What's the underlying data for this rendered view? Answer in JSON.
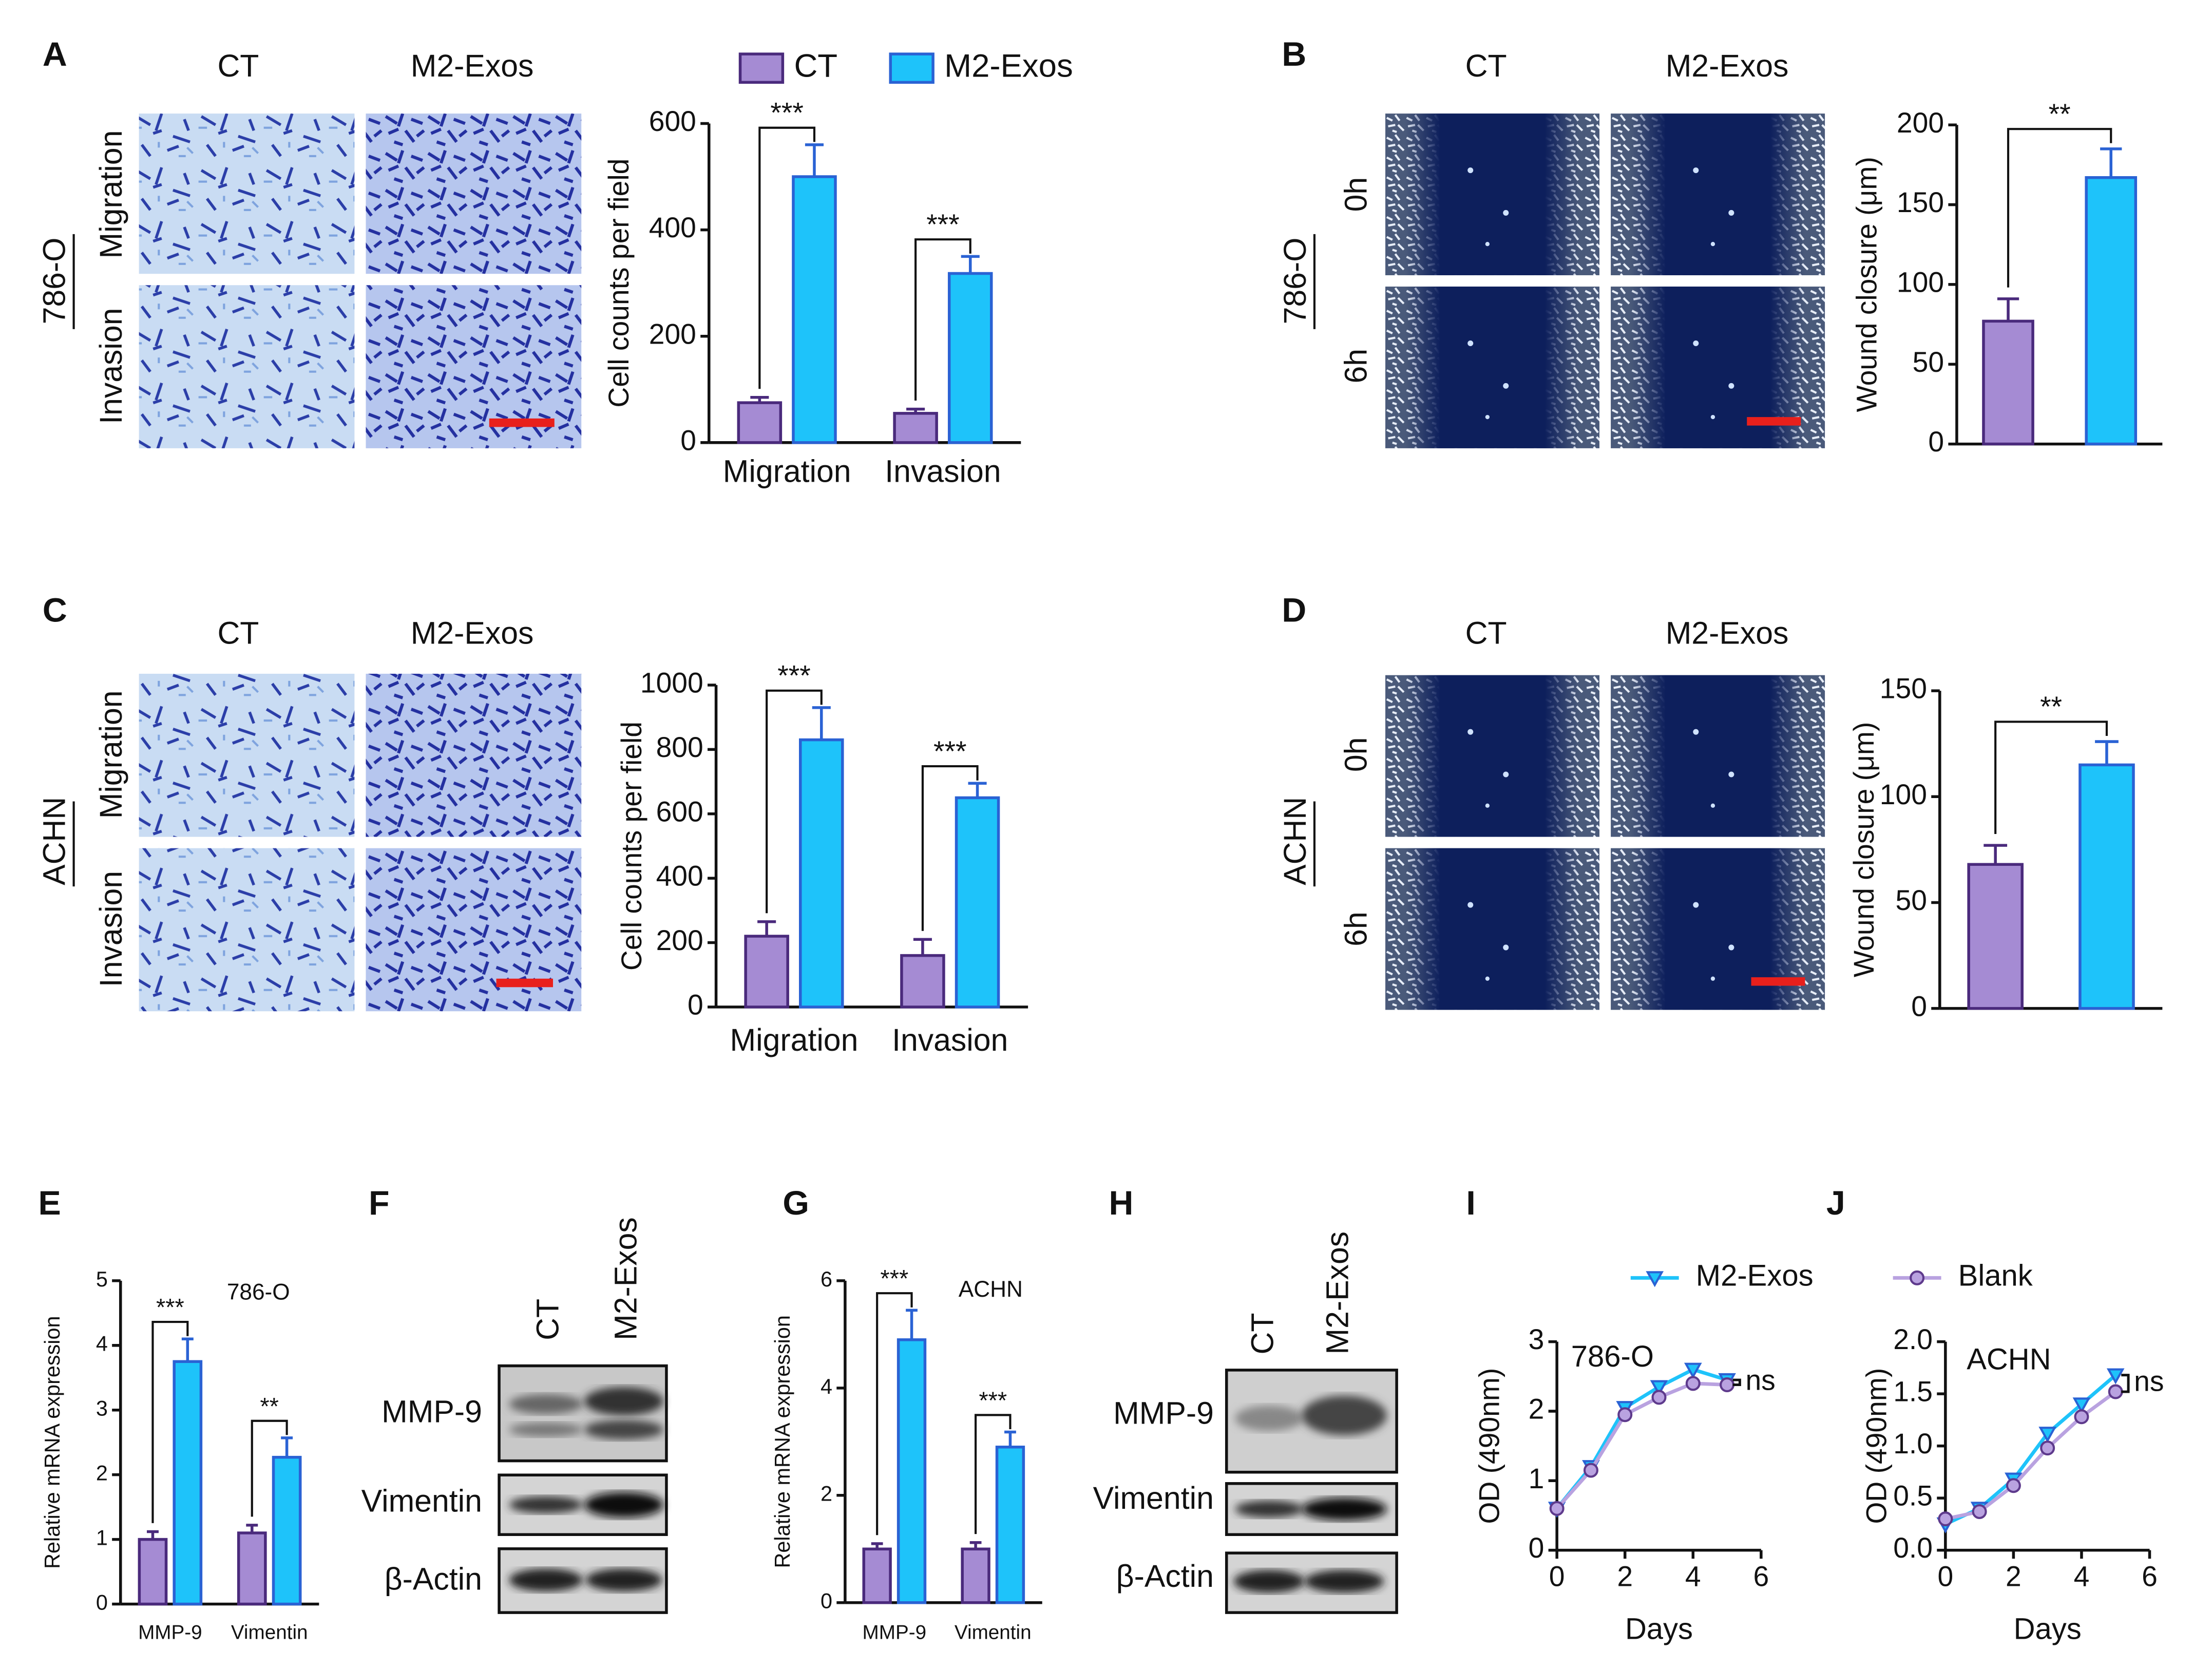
{
  "panels": {
    "letters": [
      "A",
      "B",
      "C",
      "D",
      "E",
      "F",
      "G",
      "H",
      "I",
      "J"
    ],
    "A": {
      "columns": [
        "CT",
        "M2-Exos"
      ],
      "rows": [
        "Migration",
        "Invasion"
      ],
      "cell_line": "786-O"
    },
    "B": {
      "columns": [
        "CT",
        "M2-Exos"
      ],
      "rows": [
        "0h",
        "6h"
      ],
      "cell_line": "786-O"
    },
    "C": {
      "columns": [
        "CT",
        "M2-Exos"
      ],
      "rows": [
        "Migration",
        "Invasion"
      ],
      "cell_line": "ACHN"
    },
    "D": {
      "columns": [
        "CT",
        "M2-Exos"
      ],
      "rows": [
        "0h",
        "6h"
      ],
      "cell_line": "ACHN"
    },
    "F": {
      "columns": [
        "CT",
        "M2-Exos"
      ],
      "rows": [
        "MMP-9",
        "Vimentin",
        "β-Actin"
      ]
    },
    "H": {
      "columns": [
        "CT",
        "M2-Exos"
      ],
      "rows": [
        "MMP-9",
        "Vimentin",
        "β-Actin"
      ]
    }
  },
  "chart_data": [
    {
      "type": "bar",
      "categories": [
        "Migration",
        "Invasion"
      ],
      "series": [
        {
          "name": "CT",
          "color": "#a58bd3",
          "edgecolor": "#4a2a7c",
          "values": [
            75,
            55
          ],
          "errors": [
            10,
            8
          ]
        },
        {
          "name": "M2-Exos",
          "color": "#1ec3fa",
          "edgecolor": "#2a62d4",
          "values": [
            500,
            318
          ],
          "errors": [
            60,
            32
          ]
        }
      ],
      "ylim": [
        0,
        600
      ],
      "yticks": [
        0,
        200,
        400,
        600
      ],
      "ylabel": "Cell counts per field",
      "significance": [
        "***",
        "***"
      ]
    },
    {
      "type": "bar",
      "values": [
        77,
        167
      ],
      "errors": [
        14,
        18
      ],
      "colors": [
        "#a58bd3",
        "#1ec3fa"
      ],
      "edgecolors": [
        "#4a2a7c",
        "#2a62d4"
      ],
      "ylim": [
        0,
        200
      ],
      "yticks": [
        0,
        50,
        100,
        150,
        200
      ],
      "ylabel": "Wound closure (μm)",
      "significance": "**"
    },
    {
      "type": "bar",
      "categories": [
        "Migration",
        "Invasion"
      ],
      "series": [
        {
          "color": "#a58bd3",
          "edgecolor": "#4a2a7c",
          "values": [
            220,
            160
          ],
          "errors": [
            45,
            50
          ]
        },
        {
          "color": "#1ec3fa",
          "edgecolor": "#2a62d4",
          "values": [
            830,
            650
          ],
          "errors": [
            100,
            45
          ]
        }
      ],
      "ylim": [
        0,
        1000
      ],
      "yticks": [
        0,
        200,
        400,
        600,
        800,
        1000
      ],
      "ylabel": "Cell counts per field",
      "significance": [
        "***",
        "***"
      ]
    },
    {
      "type": "bar",
      "values": [
        68,
        115
      ],
      "errors": [
        9,
        11
      ],
      "colors": [
        "#a58bd3",
        "#1ec3fa"
      ],
      "edgecolors": [
        "#4a2a7c",
        "#2a62d4"
      ],
      "ylim": [
        0,
        150
      ],
      "yticks": [
        0,
        50,
        100,
        150
      ],
      "ylabel": "Wound closure (μm)",
      "significance": "**"
    },
    {
      "type": "bar",
      "categories": [
        "MMP-9",
        "Vimentin"
      ],
      "series": [
        {
          "color": "#a58bd3",
          "edgecolor": "#4a2a7c",
          "values": [
            1,
            1.1
          ],
          "errors": [
            0.12,
            0.12
          ]
        },
        {
          "color": "#1ec3fa",
          "edgecolor": "#2a62d4",
          "values": [
            3.75,
            2.27
          ],
          "errors": [
            0.35,
            0.3
          ]
        }
      ],
      "ylim": [
        0,
        5
      ],
      "yticks": [
        0,
        1,
        2,
        3,
        4,
        5
      ],
      "ylabel": "Relative mRNA expression",
      "label": "786-O",
      "significance": [
        "***",
        "**"
      ]
    },
    {
      "type": "bar",
      "categories": [
        "MMP-9",
        "Vimentin"
      ],
      "series": [
        {
          "color": "#a58bd3",
          "edgecolor": "#4a2a7c",
          "values": [
            1,
            1
          ],
          "errors": [
            0.1,
            0.12
          ]
        },
        {
          "color": "#1ec3fa",
          "edgecolor": "#2a62d4",
          "values": [
            4.9,
            2.9
          ],
          "errors": [
            0.55,
            0.28
          ]
        }
      ],
      "ylim": [
        0,
        6
      ],
      "yticks": [
        0,
        2,
        4,
        6
      ],
      "ylabel": "Relative mRNA expression",
      "label": "ACHN",
      "significance": [
        "***",
        "***"
      ]
    },
    {
      "type": "line",
      "x": [
        0,
        1,
        2,
        3,
        4,
        5
      ],
      "series": [
        {
          "name": "M2-Exos",
          "color": "#1ec3fa",
          "edgecolor": "#2a62d4",
          "marker": "triangle-down",
          "values": [
            0.6,
            1.2,
            2.05,
            2.35,
            2.6,
            2.45
          ]
        },
        {
          "name": "Blank",
          "color": "#b9a2e0",
          "edgecolor": "#5e3a8c",
          "marker": "circle",
          "values": [
            0.6,
            1.15,
            1.95,
            2.2,
            2.4,
            2.38
          ]
        }
      ],
      "xlim": [
        0,
        6
      ],
      "xticks": [
        0,
        2,
        4,
        6
      ],
      "ylim": [
        0,
        3
      ],
      "yticks": [
        0,
        1,
        2,
        3
      ],
      "xlabel": "Days",
      "ylabel": "OD (490nm)",
      "label": "786-O",
      "significance": "ns"
    },
    {
      "type": "line",
      "x": [
        0,
        1,
        2,
        3,
        4,
        5
      ],
      "series": [
        {
          "color": "#1ec3fa",
          "edgecolor": "#2a62d4",
          "marker": "triangle-down",
          "values": [
            0.25,
            0.4,
            0.68,
            1.12,
            1.4,
            1.68
          ]
        },
        {
          "color": "#b9a2e0",
          "edgecolor": "#5e3a8c",
          "marker": "circle",
          "values": [
            0.3,
            0.37,
            0.62,
            0.98,
            1.28,
            1.52
          ]
        }
      ],
      "xlim": [
        0,
        6
      ],
      "xticks": [
        0,
        2,
        4,
        6
      ],
      "ylim": [
        0,
        2
      ],
      "yticks": [
        {
          "value": 0,
          "label": "0.0"
        },
        0.5,
        {
          "value": 1,
          "label": "1.0"
        },
        1.5,
        {
          "value": 2,
          "label": "2.0"
        }
      ],
      "xlabel": "Days",
      "ylabel": "OD (490nm)",
      "label": "ACHN",
      "significance": "ns"
    }
  ]
}
